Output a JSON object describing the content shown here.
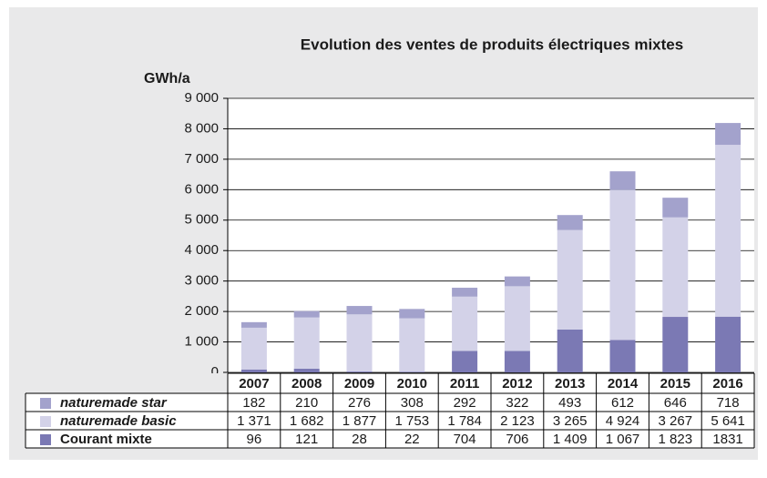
{
  "chart_data": {
    "type": "bar",
    "stacked": true,
    "title": "Evolution des ventes de produits électriques mixtes",
    "y_label": "GWh/a",
    "categories": [
      "2007",
      "2008",
      "2009",
      "2010",
      "2011",
      "2012",
      "2013",
      "2014",
      "2015",
      "2016"
    ],
    "series": [
      {
        "name": "naturemade star",
        "color": "#a3a2cc",
        "values": [
          182,
          210,
          276,
          308,
          292,
          322,
          493,
          612,
          646,
          718
        ],
        "value_labels": [
          "182",
          "210",
          "276",
          "308",
          "292",
          "322",
          "493",
          "612",
          "646",
          "718"
        ]
      },
      {
        "name": "naturemade basic",
        "color": "#d3d2e8",
        "values": [
          1371,
          1682,
          1877,
          1753,
          1784,
          2123,
          3265,
          4924,
          3267,
          5641
        ],
        "value_labels": [
          "1 371",
          "1 682",
          "1 877",
          "1 753",
          "1 784",
          "2 123",
          "3 265",
          "4 924",
          "3 267",
          "5 641"
        ]
      },
      {
        "name": "Courant mixte",
        "color": "#7b79b4",
        "values": [
          96,
          121,
          28,
          22,
          704,
          706,
          1409,
          1067,
          1823,
          1831
        ],
        "value_labels": [
          "96",
          "121",
          "28",
          "22",
          "704",
          "706",
          "1 409",
          "1 067",
          "1 823",
          "1831"
        ]
      }
    ],
    "ylim": [
      0,
      9000
    ],
    "yticks": [
      0,
      {
        "value": 1000,
        "label": "1 000"
      },
      {
        "value": 2000,
        "label": "2 000"
      },
      {
        "value": 3000,
        "label": "3 000"
      },
      {
        "value": 4000,
        "label": "4 000"
      },
      {
        "value": 5000,
        "label": "5 000"
      },
      {
        "value": 6000,
        "label": "6 000"
      },
      {
        "value": 7000,
        "label": "7 000"
      },
      {
        "value": 8000,
        "label": "8 000"
      },
      {
        "value": 9000,
        "label": "9 000"
      }
    ],
    "grid": true
  }
}
